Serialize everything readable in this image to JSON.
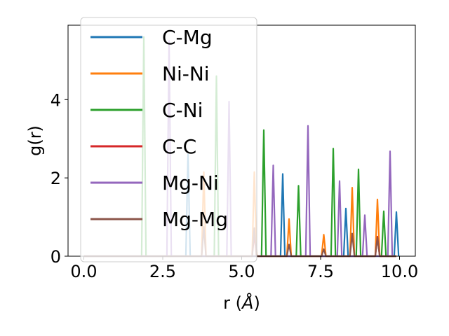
{
  "chart_data": {
    "type": "line",
    "title": "",
    "xlabel": "r (Å)",
    "ylabel": "g(r)",
    "xlim": [
      -0.5,
      10.5
    ],
    "ylim": [
      0,
      5.9
    ],
    "xticks": [
      0.0,
      2.5,
      5.0,
      7.5,
      10.0
    ],
    "xtick_labels": [
      "0.0",
      "2.5",
      "5.0",
      "7.5",
      "10.0"
    ],
    "yticks": [
      0,
      2,
      4
    ],
    "ytick_labels": [
      "0",
      "2",
      "4"
    ],
    "grid": false,
    "legend_position": "upper-left",
    "series": [
      {
        "name": "C-Mg",
        "color": "#1f77b4",
        "peaks": [
          [
            3.3,
            2.6
          ],
          [
            6.3,
            2.1
          ],
          [
            8.3,
            1.22
          ],
          [
            9.9,
            1.13
          ]
        ]
      },
      {
        "name": "Ni-Ni",
        "color": "#ff7f0e",
        "peaks": [
          [
            3.8,
            2.15
          ],
          [
            5.4,
            2.15
          ],
          [
            6.5,
            0.95
          ],
          [
            7.6,
            0.55
          ],
          [
            8.5,
            1.75
          ],
          [
            9.3,
            1.45
          ]
        ]
      },
      {
        "name": "C-Ni",
        "color": "#2ca02c",
        "peaks": [
          [
            1.9,
            5.6
          ],
          [
            4.2,
            4.6
          ],
          [
            5.7,
            3.22
          ],
          [
            6.8,
            1.8
          ],
          [
            7.9,
            2.75
          ],
          [
            8.7,
            2.22
          ],
          [
            9.5,
            1.15
          ]
        ]
      },
      {
        "name": "C-C",
        "color": "#d62728",
        "peaks": [
          [
            5.4,
            0.55
          ],
          [
            9.3,
            0.5
          ]
        ]
      },
      {
        "name": "Mg-Ni",
        "color": "#9467bd",
        "peaks": [
          [
            2.7,
            5.5
          ],
          [
            4.6,
            3.95
          ],
          [
            6.0,
            2.32
          ],
          [
            7.1,
            3.33
          ],
          [
            8.1,
            1.92
          ],
          [
            8.9,
            1.05
          ],
          [
            9.7,
            2.68
          ]
        ]
      },
      {
        "name": "Mg-Mg",
        "color": "#8c564b",
        "peaks": [
          [
            3.8,
            0.75
          ],
          [
            5.4,
            0.72
          ],
          [
            6.5,
            0.3
          ],
          [
            7.6,
            0.18
          ],
          [
            8.5,
            0.58
          ],
          [
            9.3,
            0.48
          ]
        ]
      }
    ]
  }
}
